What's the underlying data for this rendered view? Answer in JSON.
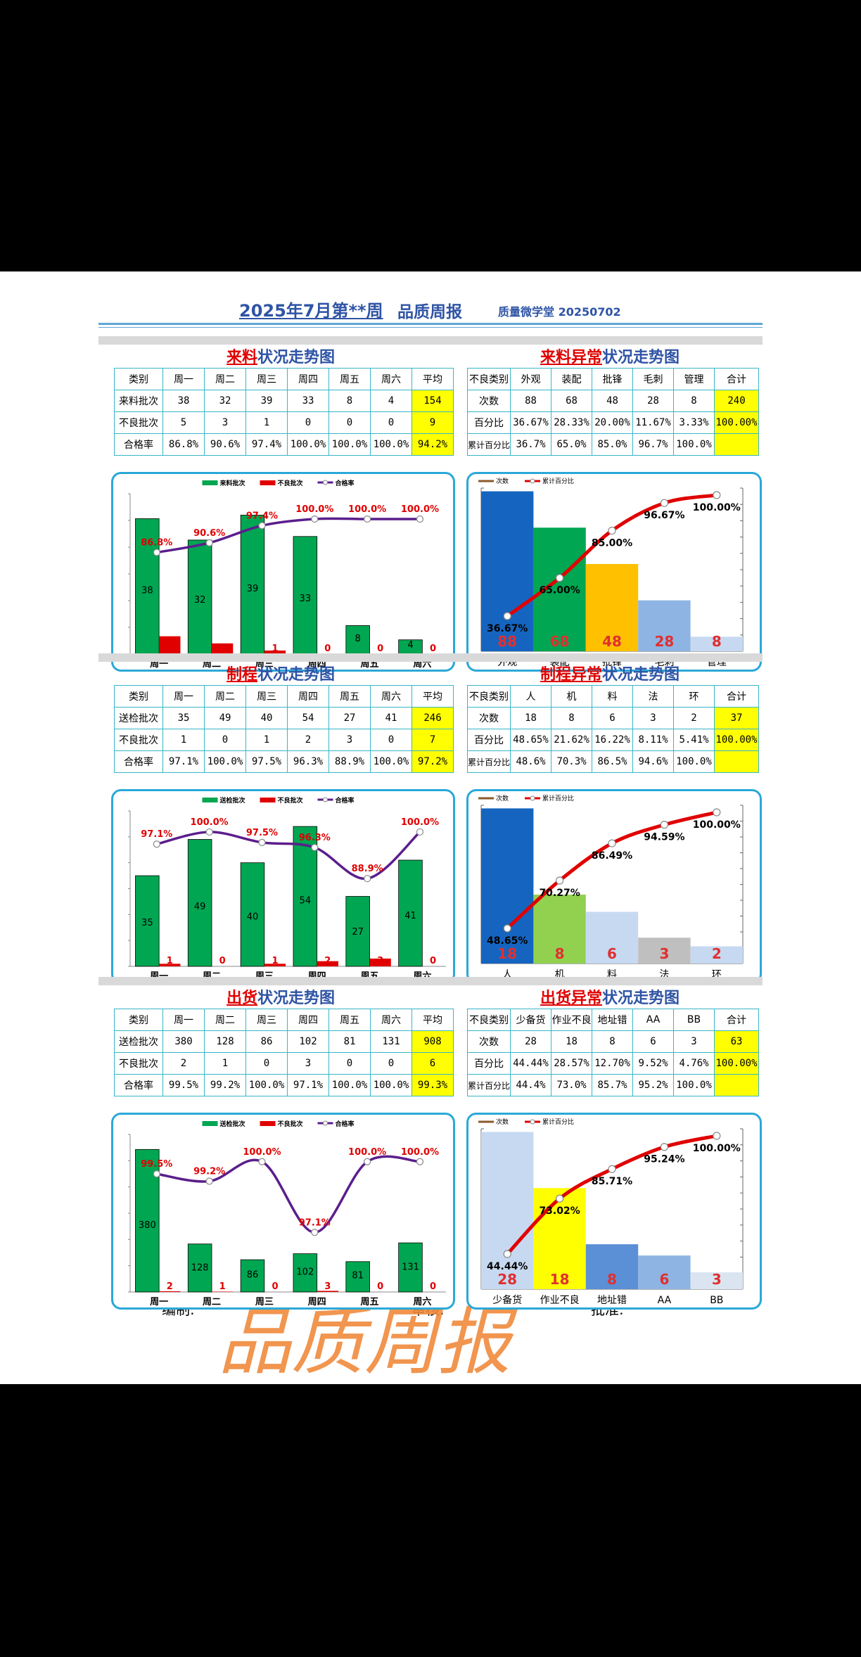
{
  "header": {
    "title": "2025年7月第**周",
    "subtitle": "品质周报",
    "org": "质量微学堂 20250702"
  },
  "sections": [
    {
      "key": "incoming",
      "title_red": "来料",
      "title_rest": "状况走势图",
      "abn_title_red": "来料异常",
      "abn_title_rest": "状况走势图",
      "table": {
        "header": [
          "类别",
          "周一",
          "周二",
          "周三",
          "周四",
          "周五",
          "周六",
          "平均"
        ],
        "rows": [
          [
            "来料批次",
            "38",
            "32",
            "39",
            "33",
            "8",
            "4",
            "154"
          ],
          [
            "不良批次",
            "5",
            "3",
            "1",
            "0",
            "0",
            "0",
            "9"
          ],
          [
            "合格率",
            "86.8%",
            "90.6%",
            "97.4%",
            "100.0%",
            "100.0%",
            "100.0%",
            "94.2%"
          ]
        ]
      },
      "abn_table": {
        "header": [
          "不良类别",
          "外观",
          "装配",
          "批锋",
          "毛刺",
          "管理",
          "合计"
        ],
        "rows": [
          [
            "次数",
            "88",
            "68",
            "48",
            "28",
            "8",
            "240"
          ],
          [
            "百分比",
            "36.67%",
            "28.33%",
            "20.00%",
            "11.67%",
            "3.33%",
            "100.00%"
          ],
          [
            "累计百分比",
            "36.7%",
            "65.0%",
            "85.0%",
            "96.7%",
            "100.0%",
            ""
          ]
        ]
      }
    },
    {
      "key": "process",
      "title_red": "制程",
      "title_rest": "状况走势图",
      "abn_title_red": "制程异常",
      "abn_title_rest": "状况走势图",
      "table": {
        "header": [
          "类别",
          "周一",
          "周二",
          "周三",
          "周四",
          "周五",
          "周六",
          "平均"
        ],
        "rows": [
          [
            "送检批次",
            "35",
            "49",
            "40",
            "54",
            "27",
            "41",
            "246"
          ],
          [
            "不良批次",
            "1",
            "0",
            "1",
            "2",
            "3",
            "0",
            "7"
          ],
          [
            "合格率",
            "97.1%",
            "100.0%",
            "97.5%",
            "96.3%",
            "88.9%",
            "100.0%",
            "97.2%"
          ]
        ]
      },
      "abn_table": {
        "header": [
          "不良类别",
          "人",
          "机",
          "料",
          "法",
          "环",
          "合计"
        ],
        "rows": [
          [
            "次数",
            "18",
            "8",
            "6",
            "3",
            "2",
            "37"
          ],
          [
            "百分比",
            "48.65%",
            "21.62%",
            "16.22%",
            "8.11%",
            "5.41%",
            "100.00%"
          ],
          [
            "累计百分比",
            "48.6%",
            "70.3%",
            "86.5%",
            "94.6%",
            "100.0%",
            ""
          ]
        ]
      }
    },
    {
      "key": "shipping",
      "title_red": "出货",
      "title_rest": "状况走势图",
      "abn_title_red": "出货异常",
      "abn_title_rest": "状况走势图",
      "table": {
        "header": [
          "类别",
          "周一",
          "周二",
          "周三",
          "周四",
          "周五",
          "周六",
          "平均"
        ],
        "rows": [
          [
            "送检批次",
            "380",
            "128",
            "86",
            "102",
            "81",
            "131",
            "908"
          ],
          [
            "不良批次",
            "2",
            "1",
            "0",
            "3",
            "0",
            "0",
            "6"
          ],
          [
            "合格率",
            "99.5%",
            "99.2%",
            "100.0%",
            "97.1%",
            "100.0%",
            "100.0%",
            "99.3%"
          ]
        ]
      },
      "abn_table": {
        "header": [
          "不良类别",
          "少备货",
          "作业不良",
          "地址错",
          "AA",
          "BB",
          "合计"
        ],
        "rows": [
          [
            "次数",
            "28",
            "18",
            "8",
            "6",
            "3",
            "63"
          ],
          [
            "百分比",
            "44.44%",
            "28.57%",
            "12.70%",
            "9.52%",
            "4.76%",
            "100.00%"
          ],
          [
            "累计百分比",
            "44.4%",
            "73.0%",
            "85.7%",
            "95.2%",
            "100.0%",
            ""
          ]
        ]
      }
    }
  ],
  "chart_data": [
    {
      "type": "bar",
      "categories": [
        "周一",
        "周二",
        "周三",
        "周四",
        "周五",
        "周六"
      ],
      "series": [
        {
          "name": "来料批次",
          "values": [
            38,
            32,
            39,
            33,
            8,
            4
          ],
          "color": "#00a651"
        },
        {
          "name": "不良批次",
          "values": [
            5,
            3,
            1,
            0,
            0,
            0
          ],
          "color": "#e00000"
        },
        {
          "name": "合格率",
          "values": [
            86.8,
            90.6,
            97.4,
            100.0,
            100.0,
            100.0
          ],
          "color": "#5b1e8c"
        }
      ],
      "rate_labels": [
        "86.8%",
        "90.6%",
        "97.4%",
        "100.0%",
        "100.0%",
        "100.0%"
      ],
      "ylim": [
        0,
        45
      ],
      "rate_range": [
        50,
        105
      ],
      "legend_position": "top-center"
    },
    {
      "type": "bar",
      "categories": [
        "外观",
        "装配",
        "批锋",
        "毛刺",
        "管理"
      ],
      "series": [
        {
          "name": "次数",
          "values": [
            88,
            68,
            48,
            28,
            8
          ]
        },
        {
          "name": "累计百分比",
          "values": [
            36.67,
            65.0,
            85.0,
            96.67,
            100.0
          ]
        }
      ],
      "cum_labels": [
        "36.67%",
        "65.00%",
        "85.00%",
        "96.67%",
        "100.00%"
      ],
      "bar_colors": [
        "#1565c0",
        "#00a651",
        "#ffc000",
        "#8eb4e3",
        "#c6d9f1"
      ],
      "legend_position": "top-left"
    },
    {
      "type": "bar",
      "categories": [
        "周一",
        "周二",
        "周三",
        "周四",
        "周五",
        "周六"
      ],
      "series": [
        {
          "name": "送检批次",
          "values": [
            35,
            49,
            40,
            54,
            27,
            41
          ],
          "color": "#00a651"
        },
        {
          "name": "不良批次",
          "values": [
            1,
            0,
            1,
            2,
            3,
            0
          ],
          "color": "#e00000"
        },
        {
          "name": "合格率",
          "values": [
            97.1,
            100.0,
            97.5,
            96.3,
            88.9,
            100.0
          ],
          "color": "#5b1e8c"
        }
      ],
      "rate_labels": [
        "97.1%",
        "100.0%",
        "97.5%",
        "96.3%",
        "88.9%",
        "100.0%"
      ],
      "ylim": [
        0,
        60
      ],
      "rate_range": [
        70,
        102
      ],
      "legend_position": "top-center"
    },
    {
      "type": "bar",
      "categories": [
        "人",
        "机",
        "料",
        "法",
        "环"
      ],
      "series": [
        {
          "name": "次数",
          "values": [
            18,
            8,
            6,
            3,
            2
          ]
        },
        {
          "name": "累计百分比",
          "values": [
            48.65,
            70.27,
            86.49,
            94.59,
            100.0
          ]
        }
      ],
      "cum_labels": [
        "48.65%",
        "70.27%",
        "86.49%",
        "94.59%",
        "100.00%"
      ],
      "bar_colors": [
        "#1565c0",
        "#92d050",
        "#c6d9f1",
        "#bfbfbf",
        "#c6d9f1"
      ],
      "legend_position": "top-left"
    },
    {
      "type": "bar",
      "categories": [
        "周一",
        "周二",
        "周三",
        "周四",
        "周五",
        "周六"
      ],
      "series": [
        {
          "name": "送检批次",
          "values": [
            380,
            128,
            86,
            102,
            81,
            131
          ],
          "color": "#00a651"
        },
        {
          "name": "不良批次",
          "values": [
            2,
            1,
            0,
            3,
            0,
            0
          ],
          "color": "#e00000"
        },
        {
          "name": "合格率",
          "values": [
            99.5,
            99.2,
            100.0,
            97.1,
            100.0,
            100.0
          ],
          "color": "#5b1e8c"
        }
      ],
      "rate_labels": [
        "99.5%",
        "99.2%",
        "100.0%",
        "97.1%",
        "100.0%",
        "100.0%"
      ],
      "ylim": [
        0,
        420
      ],
      "rate_range": [
        95,
        100.6
      ],
      "legend_position": "top-center"
    },
    {
      "type": "bar",
      "categories": [
        "少备货",
        "作业不良",
        "地址错",
        "AA",
        "BB"
      ],
      "series": [
        {
          "name": "次数",
          "values": [
            28,
            18,
            8,
            6,
            3
          ]
        },
        {
          "name": "累计百分比",
          "values": [
            44.44,
            73.02,
            85.71,
            95.24,
            100.0
          ]
        }
      ],
      "cum_labels": [
        "44.44%",
        "73.02%",
        "85.71%",
        "95.24%",
        "100.00%"
      ],
      "bar_colors": [
        "#c6d9f1",
        "#ffff00",
        "#5b8fd6",
        "#8eb4e3",
        "#dbe5f1"
      ],
      "legend_position": "top-left"
    }
  ],
  "footer": {
    "editor": "编制:",
    "reviewer": "审核:",
    "approver": "批准:",
    "stamp_text": "品质周报"
  },
  "colors": {
    "title_blue": "#2f54a5",
    "accent_red": "#e00000",
    "border_teal": "#36b6c8",
    "highlight_yellow": "#ffff00",
    "stamp_orange": "#f08a3c"
  }
}
